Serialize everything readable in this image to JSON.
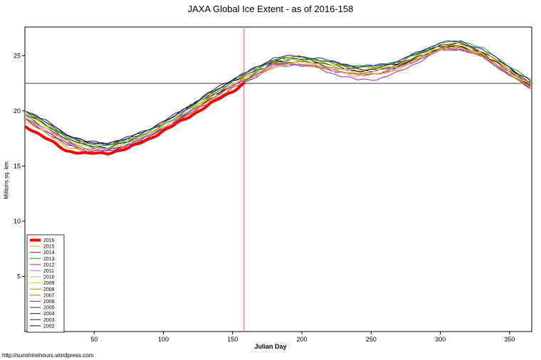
{
  "header": {
    "title": "JAXA Global Ice Extent - as of 2016-158"
  },
  "footer": {
    "url": "http://sunshinehours.wordpress.com"
  },
  "chart_data": {
    "type": "line",
    "title": "JAXA Global Ice Extent - as of 2016-158",
    "xlabel": "Julian Day",
    "ylabel": "Millions sq. km.",
    "xlim": [
      0,
      366
    ],
    "ylim": [
      0,
      27.6
    ],
    "x_ticks": [
      50,
      100,
      150,
      200,
      250,
      300,
      350
    ],
    "y_ticks": [
      5,
      10,
      15,
      20,
      25
    ],
    "grid": false,
    "legend_position": "bottom-left",
    "hline": {
      "value": 22.5,
      "color": "#444444"
    },
    "vline": {
      "value": 158,
      "color": "#ff8899"
    },
    "x": [
      1,
      15,
      30,
      45,
      60,
      75,
      90,
      105,
      120,
      135,
      150,
      165,
      180,
      195,
      210,
      225,
      240,
      255,
      270,
      285,
      300,
      315,
      330,
      345,
      365
    ],
    "series": [
      {
        "name": "2016",
        "color": "#ff0000",
        "width": 4,
        "x": [
          1,
          15,
          30,
          45,
          60,
          75,
          90,
          105,
          120,
          135,
          150,
          158
        ],
        "values": [
          18.6,
          17.5,
          16.4,
          16.1,
          16.2,
          16.6,
          17.5,
          18.5,
          19.6,
          20.7,
          21.8,
          22.5
        ]
      },
      {
        "name": "2015",
        "color": "#ff9900",
        "width": 1,
        "values": [
          19.0,
          18.0,
          16.8,
          16.2,
          16.2,
          16.7,
          17.6,
          18.6,
          19.8,
          21.0,
          22.1,
          23.0,
          24.0,
          24.3,
          24.0,
          23.6,
          23.2,
          23.3,
          23.8,
          24.7,
          25.6,
          25.7,
          25.0,
          23.8,
          22.0
        ]
      },
      {
        "name": "2014",
        "color": "#2222cc",
        "width": 1,
        "values": [
          20.0,
          19.0,
          17.8,
          17.1,
          17.0,
          17.5,
          18.3,
          19.3,
          20.5,
          21.7,
          22.8,
          23.8,
          24.8,
          25.0,
          24.8,
          24.4,
          24.0,
          24.1,
          24.5,
          25.4,
          26.2,
          26.3,
          25.6,
          24.4,
          22.7
        ]
      },
      {
        "name": "2013",
        "color": "#00bb00",
        "width": 1,
        "values": [
          19.8,
          18.8,
          17.6,
          16.9,
          16.8,
          17.3,
          18.1,
          19.1,
          20.3,
          21.5,
          22.6,
          23.6,
          24.6,
          24.8,
          24.6,
          24.3,
          24.0,
          24.1,
          24.5,
          25.3,
          26.1,
          26.4,
          25.7,
          24.5,
          22.8
        ]
      },
      {
        "name": "2012",
        "color": "#aa22cc",
        "width": 1,
        "values": [
          19.2,
          18.2,
          17.0,
          16.4,
          16.4,
          16.9,
          17.7,
          18.7,
          19.9,
          21.1,
          22.2,
          23.2,
          24.2,
          24.3,
          23.9,
          23.3,
          22.8,
          22.9,
          23.5,
          24.5,
          25.5,
          25.6,
          24.9,
          23.7,
          22.0
        ]
      },
      {
        "name": "2011",
        "color": "#cc88ee",
        "width": 1,
        "values": [
          19.3,
          18.3,
          17.1,
          16.5,
          16.5,
          17.0,
          17.8,
          18.8,
          20.0,
          21.1,
          22.2,
          23.1,
          24.0,
          24.2,
          24.0,
          23.6,
          23.2,
          23.4,
          23.9,
          24.7,
          25.5,
          25.6,
          24.9,
          23.8,
          22.1
        ]
      },
      {
        "name": "2010",
        "color": "#ccbb88",
        "width": 1,
        "values": [
          19.4,
          18.4,
          17.2,
          16.6,
          16.6,
          17.1,
          17.9,
          18.9,
          20.1,
          21.3,
          22.4,
          23.3,
          24.2,
          24.4,
          24.2,
          23.8,
          23.5,
          23.6,
          24.0,
          24.8,
          25.6,
          25.7,
          25.0,
          23.9,
          22.2
        ]
      },
      {
        "name": "2009",
        "color": "#eecc00",
        "width": 1,
        "values": [
          19.6,
          18.6,
          17.4,
          16.7,
          16.6,
          17.1,
          18.0,
          19.0,
          20.2,
          21.4,
          22.5,
          23.4,
          24.4,
          24.6,
          24.4,
          24.0,
          23.7,
          23.8,
          24.2,
          25.0,
          25.8,
          25.9,
          25.2,
          24.1,
          22.4
        ]
      },
      {
        "name": "2008",
        "color": "#bb8800",
        "width": 1,
        "values": [
          19.9,
          18.9,
          17.7,
          17.0,
          16.9,
          17.4,
          18.2,
          19.2,
          20.4,
          21.6,
          22.7,
          23.7,
          24.7,
          24.9,
          24.6,
          24.2,
          23.9,
          24.0,
          24.4,
          25.2,
          26.0,
          26.1,
          25.4,
          24.2,
          22.5
        ]
      },
      {
        "name": "2007",
        "color": "#cc6600",
        "width": 1,
        "values": [
          19.3,
          18.3,
          17.1,
          16.5,
          16.4,
          16.9,
          17.8,
          18.8,
          20.0,
          21.2,
          22.3,
          23.2,
          24.1,
          24.3,
          24.1,
          23.7,
          23.3,
          23.4,
          23.9,
          24.8,
          25.6,
          25.7,
          25.0,
          23.8,
          22.1
        ]
      },
      {
        "name": "2006",
        "color": "#445566",
        "width": 1,
        "values": [
          19.1,
          18.1,
          16.9,
          16.3,
          16.3,
          16.8,
          17.6,
          18.6,
          19.8,
          20.9,
          22.0,
          23.0,
          24.0,
          24.2,
          24.0,
          23.6,
          23.3,
          23.4,
          23.9,
          24.7,
          25.5,
          25.6,
          24.9,
          23.7,
          22.0
        ]
      },
      {
        "name": "2005",
        "color": "#333333",
        "width": 1,
        "values": [
          19.5,
          18.5,
          17.3,
          16.6,
          16.5,
          17.0,
          17.8,
          18.8,
          20.0,
          21.2,
          22.3,
          23.3,
          24.3,
          24.5,
          24.3,
          23.9,
          23.6,
          23.7,
          24.1,
          24.9,
          25.7,
          25.8,
          25.1,
          23.9,
          22.2
        ]
      },
      {
        "name": "2004",
        "color": "#111111",
        "width": 1,
        "values": [
          19.9,
          19.0,
          17.8,
          17.1,
          17.0,
          17.5,
          18.3,
          19.3,
          20.5,
          21.6,
          22.7,
          23.6,
          24.5,
          24.7,
          24.5,
          24.1,
          23.8,
          23.9,
          24.3,
          25.1,
          25.9,
          26.0,
          25.3,
          24.1,
          22.4
        ]
      },
      {
        "name": "2003",
        "color": "#222222",
        "width": 1,
        "values": [
          20.0,
          19.1,
          17.9,
          17.2,
          17.1,
          17.6,
          18.4,
          19.4,
          20.6,
          21.8,
          22.9,
          23.8,
          24.7,
          24.9,
          24.7,
          24.3,
          24.0,
          24.1,
          24.5,
          25.3,
          26.0,
          26.1,
          25.4,
          24.3,
          22.6
        ]
      },
      {
        "name": "2002",
        "color": "#000000",
        "width": 1,
        "values": [
          19.7,
          18.7,
          17.5,
          16.8,
          16.7,
          17.2,
          18.0,
          19.0,
          20.2,
          21.3,
          22.4,
          23.4,
          24.4,
          24.6,
          24.4,
          24.0,
          23.6,
          23.7,
          24.1,
          24.9,
          25.7,
          25.8,
          25.1,
          24.0,
          22.3
        ]
      }
    ]
  }
}
